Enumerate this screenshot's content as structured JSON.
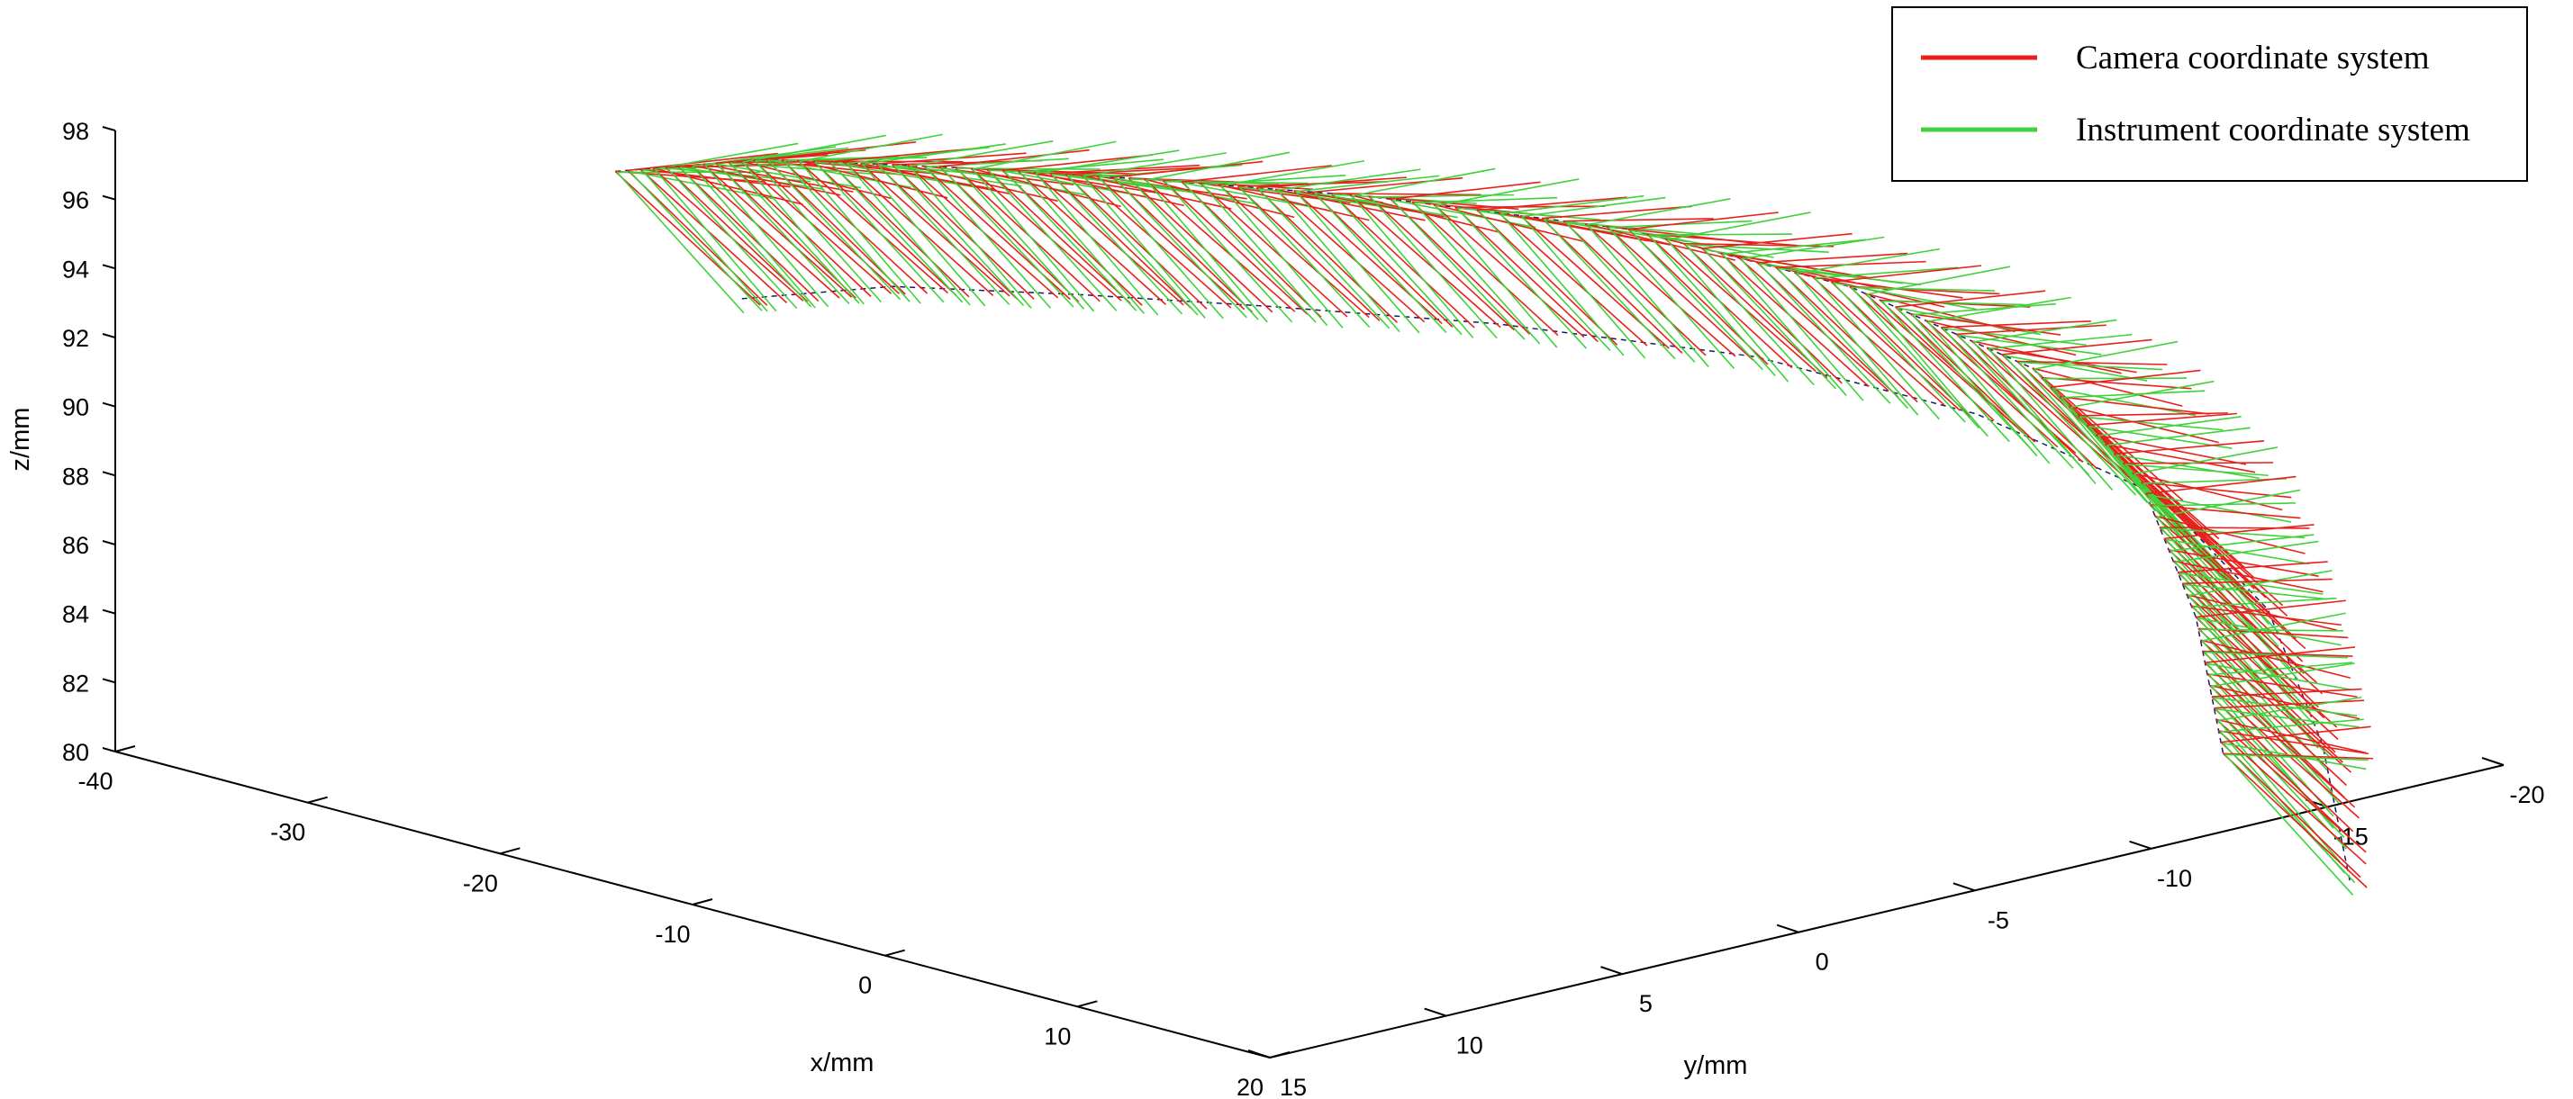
{
  "chart_data": {
    "type": "line",
    "projection": "3d",
    "xlabel": "x/mm",
    "ylabel": "y/mm",
    "zlabel": "z/mm",
    "xlim": [
      -40,
      20
    ],
    "ylim": [
      -20,
      15
    ],
    "zlim": [
      80,
      98
    ],
    "x_ticks": [
      "-40",
      "-30",
      "-20",
      "-10",
      "0",
      "10",
      "20"
    ],
    "y_ticks": [
      "-20",
      "-15",
      "-10",
      "-5",
      "0",
      "5",
      "10",
      "15"
    ],
    "z_ticks": [
      "80",
      "82",
      "84",
      "86",
      "88",
      "90",
      "92",
      "94",
      "96",
      "98"
    ],
    "grid": false,
    "legend_position": "top-right",
    "series": [
      {
        "name": "Camera coordinate system",
        "color": "#e8201b"
      },
      {
        "name": "Instrument coordinate system",
        "color": "#3fd23a"
      }
    ],
    "trajectory": {
      "description_frames": 120,
      "path": [
        {
          "x": -36,
          "y": 3,
          "z": 94.5
        },
        {
          "x": -30,
          "y": 2,
          "z": 95.5
        },
        {
          "x": -22,
          "y": 1,
          "z": 96.2
        },
        {
          "x": -14,
          "y": 0,
          "z": 96.8
        },
        {
          "x": -6,
          "y": -2,
          "z": 97.0
        },
        {
          "x": 2,
          "y": -5,
          "z": 96.5
        },
        {
          "x": 8,
          "y": -8,
          "z": 95.0
        },
        {
          "x": 12,
          "y": -11,
          "z": 92.5
        },
        {
          "x": 14,
          "y": -13,
          "z": 89.0
        },
        {
          "x": 15,
          "y": -14,
          "z": 85.0
        },
        {
          "x": 15.5,
          "y": -14.5,
          "z": 81.0
        }
      ]
    }
  }
}
